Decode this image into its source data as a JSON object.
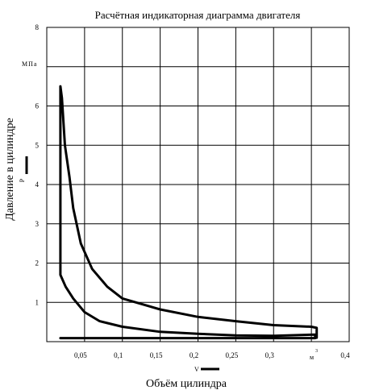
{
  "chart_data": {
    "type": "line",
    "title": "Расчётная индикаторная диаграмма двигателя",
    "xlabel": "Объём цилиндра",
    "ylabel": "Давление в цилиндре",
    "x_symbol": "V",
    "y_symbol": "P",
    "y_unit": "МПа",
    "x_unit": "м",
    "x_unit_exponent": "3",
    "xlim": [
      0,
      0.4
    ],
    "ylim": [
      0,
      8
    ],
    "grid": true,
    "x_ticks": [
      {
        "value": 0.05,
        "label": "0,05"
      },
      {
        "value": 0.1,
        "label": "0,1"
      },
      {
        "value": 0.15,
        "label": "0,15"
      },
      {
        "value": 0.2,
        "label": "0,2"
      },
      {
        "value": 0.25,
        "label": "0,25"
      },
      {
        "value": 0.3,
        "label": "0,3"
      },
      {
        "value": 0.4,
        "label": "0,4"
      }
    ],
    "y_ticks": [
      {
        "value": 1,
        "label": "1"
      },
      {
        "value": 2,
        "label": "2"
      },
      {
        "value": 3,
        "label": "3"
      },
      {
        "value": 4,
        "label": "4"
      },
      {
        "value": 5,
        "label": "5"
      },
      {
        "value": 6,
        "label": "6"
      },
      {
        "value": 8,
        "label": "8"
      }
    ],
    "series": [
      {
        "points": [
          [
            0.018,
            0.09
          ],
          [
            0.05,
            0.09
          ],
          [
            0.1,
            0.09
          ],
          [
            0.15,
            0.09
          ],
          [
            0.2,
            0.09
          ],
          [
            0.25,
            0.09
          ],
          [
            0.3,
            0.09
          ],
          [
            0.355,
            0.09
          ],
          [
            0.355,
            0.18
          ],
          [
            0.3,
            0.15
          ],
          [
            0.25,
            0.16
          ],
          [
            0.2,
            0.2
          ],
          [
            0.15,
            0.25
          ],
          [
            0.1,
            0.38
          ],
          [
            0.07,
            0.52
          ],
          [
            0.05,
            0.75
          ],
          [
            0.035,
            1.1
          ],
          [
            0.025,
            1.4
          ],
          [
            0.018,
            1.7
          ],
          [
            0.018,
            6.5
          ],
          [
            0.02,
            6.2
          ],
          [
            0.024,
            5.0
          ],
          [
            0.03,
            4.2
          ],
          [
            0.035,
            3.4
          ],
          [
            0.045,
            2.5
          ],
          [
            0.06,
            1.85
          ],
          [
            0.08,
            1.4
          ],
          [
            0.1,
            1.1
          ],
          [
            0.15,
            0.82
          ],
          [
            0.2,
            0.63
          ],
          [
            0.25,
            0.52
          ],
          [
            0.3,
            0.42
          ],
          [
            0.35,
            0.38
          ],
          [
            0.357,
            0.35
          ],
          [
            0.357,
            0.1
          ]
        ]
      }
    ]
  }
}
